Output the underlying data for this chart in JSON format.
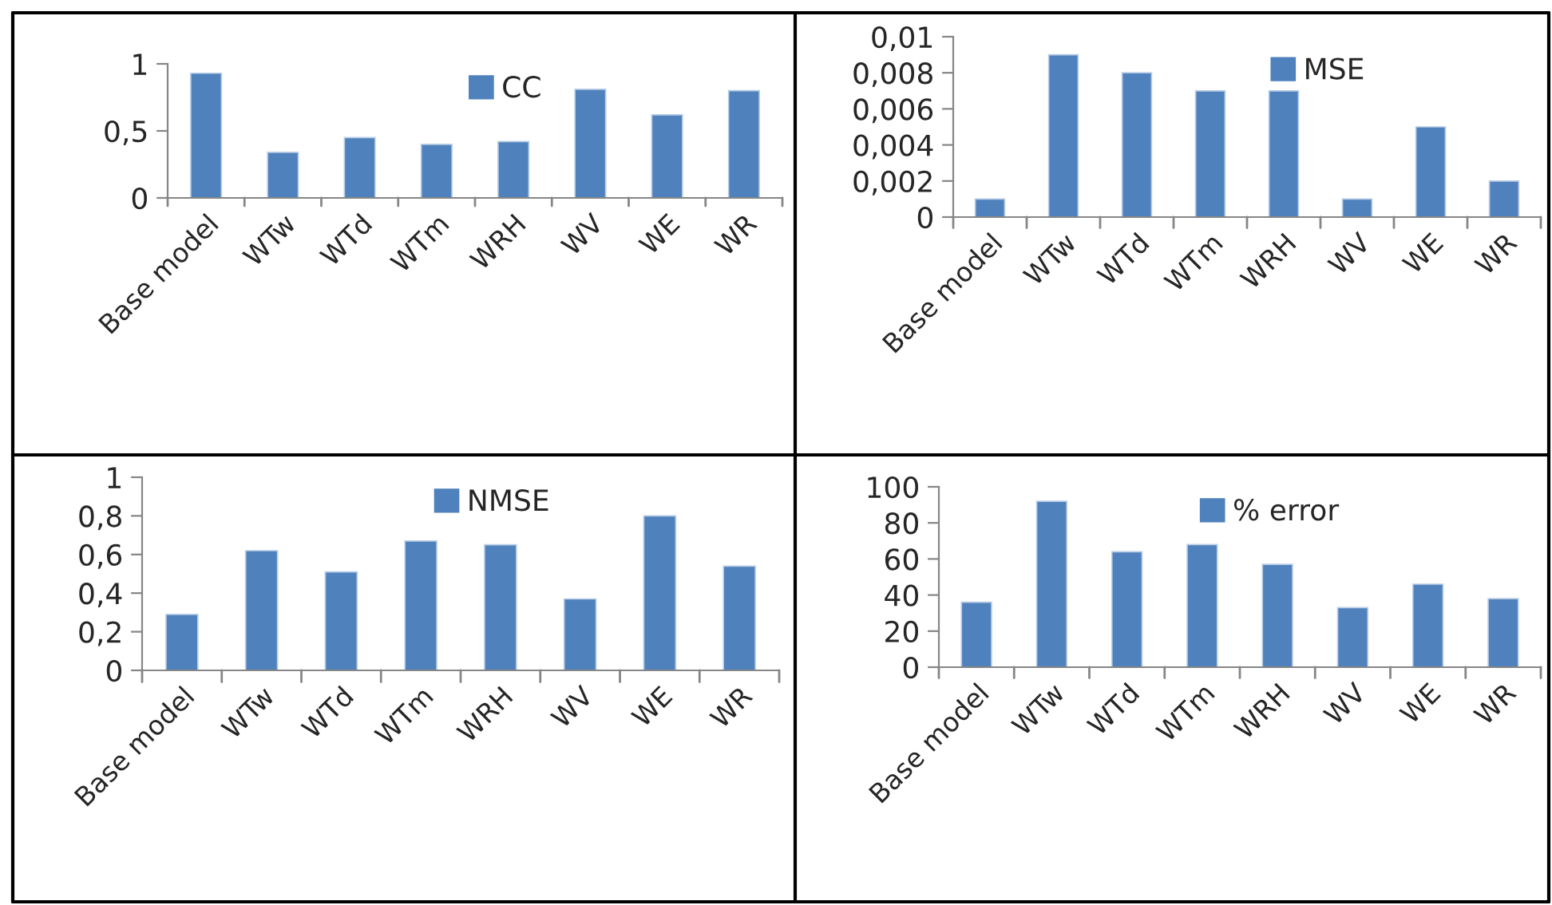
{
  "chart_data": [
    {
      "type": "bar",
      "categories": [
        "Base model",
        "WTw",
        "WTd",
        "WTm",
        "WRH",
        "WV",
        "WE",
        "WR"
      ],
      "series": [
        {
          "name": "CC",
          "color": "#4f81bd",
          "values": [
            0.93,
            0.34,
            0.45,
            0.4,
            0.42,
            0.81,
            0.62,
            0.8
          ]
        }
      ],
      "ylim": [
        0,
        1
      ],
      "yticks": [
        0,
        {
          "value": 0.5,
          "label": "0,5"
        },
        1
      ],
      "grid": false,
      "legend": "top"
    },
    {
      "type": "bar",
      "categories": [
        "Base model",
        "WTw",
        "WTd",
        "WTm",
        "WRH",
        "WV",
        "WE",
        "WR"
      ],
      "series": [
        {
          "name": "MSE",
          "color": "#4f81bd",
          "values": [
            0.001,
            0.009,
            0.008,
            0.007,
            0.007,
            0.001,
            0.005,
            0.002
          ]
        }
      ],
      "ylim": [
        0,
        0.01
      ],
      "yticks": [
        0,
        {
          "value": 0.002,
          "label": "0,002"
        },
        {
          "value": 0.004,
          "label": "0,004"
        },
        {
          "value": 0.006,
          "label": "0,006"
        },
        {
          "value": 0.008,
          "label": "0,008"
        },
        {
          "value": 0.01,
          "label": "0,01"
        }
      ],
      "grid": false,
      "legend": "top right"
    },
    {
      "type": "bar",
      "categories": [
        "Base model",
        "WTw",
        "WTd",
        "WTm",
        "WRH",
        "WV",
        "WE",
        "WR"
      ],
      "series": [
        {
          "name": "NMSE",
          "color": "#4f81bd",
          "values": [
            0.29,
            0.62,
            0.51,
            0.67,
            0.65,
            0.37,
            0.8,
            0.54
          ]
        }
      ],
      "ylim": [
        0,
        1
      ],
      "yticks": [
        0,
        {
          "value": 0.2,
          "label": "0,2"
        },
        {
          "value": 0.4,
          "label": "0,4"
        },
        {
          "value": 0.6,
          "label": "0,6"
        },
        {
          "value": 0.8,
          "label": "0,8"
        },
        1
      ],
      "grid": false,
      "legend": "top"
    },
    {
      "type": "bar",
      "categories": [
        "Base model",
        "WTw",
        "WTd",
        "WTm",
        "WRH",
        "WV",
        "WE",
        "WR"
      ],
      "series": [
        {
          "name": "% error",
          "color": "#4f81bd",
          "values": [
            36,
            92,
            64,
            68,
            57,
            33,
            46,
            38
          ]
        }
      ],
      "ylim": [
        0,
        100
      ],
      "yticks": [
        0,
        20,
        40,
        60,
        80,
        100
      ],
      "grid": false,
      "legend": "top"
    }
  ]
}
